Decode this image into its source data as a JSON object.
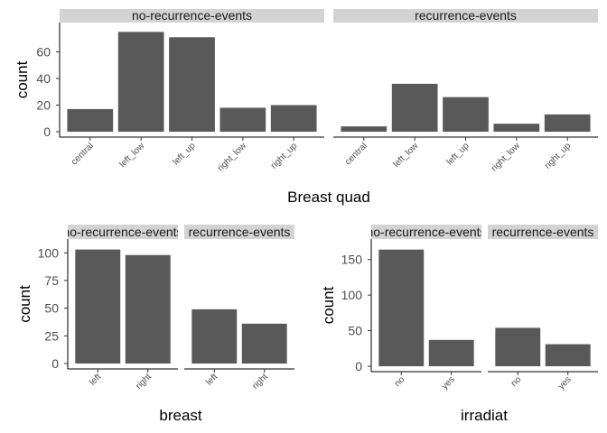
{
  "chart_data": [
    {
      "type": "bar",
      "xlabel": "Breast quad",
      "ylabel": "count",
      "ylim": [
        0,
        80
      ],
      "yticks": [
        0,
        20,
        40,
        60
      ],
      "bar_color": "#595959",
      "strip_color": "#d3d3d3",
      "grid": false,
      "facets": [
        {
          "name": "no-recurrence-events",
          "categories": [
            "central",
            "left_low",
            "left_up",
            "right_low",
            "right_up"
          ],
          "values": [
            17,
            75,
            71,
            18,
            20
          ]
        },
        {
          "name": "recurrence-events",
          "categories": [
            "central",
            "left_low",
            "left_up",
            "right_low",
            "right_up"
          ],
          "values": [
            4,
            36,
            26,
            6,
            13
          ]
        }
      ]
    },
    {
      "type": "bar",
      "xlabel": "breast",
      "ylabel": "count",
      "ylim": [
        0,
        110
      ],
      "yticks": [
        0,
        25,
        50,
        75,
        100
      ],
      "bar_color": "#595959",
      "strip_color": "#d3d3d3",
      "grid": false,
      "facets": [
        {
          "name": "no-recurrence-events",
          "categories": [
            "left",
            "right"
          ],
          "values": [
            103,
            98
          ]
        },
        {
          "name": "recurrence-events",
          "categories": [
            "left",
            "right"
          ],
          "values": [
            49,
            36
          ]
        }
      ]
    },
    {
      "type": "bar",
      "xlabel": "irradiat",
      "ylabel": "count",
      "ylim": [
        0,
        175
      ],
      "yticks": [
        0,
        50,
        100,
        150
      ],
      "bar_color": "#595959",
      "strip_color": "#d3d3d3",
      "grid": false,
      "facets": [
        {
          "name": "no-recurrence-events",
          "categories": [
            "no",
            "yes"
          ],
          "values": [
            164,
            37
          ]
        },
        {
          "name": "recurrence-events",
          "categories": [
            "no",
            "yes"
          ],
          "values": [
            54,
            31
          ]
        }
      ]
    }
  ]
}
